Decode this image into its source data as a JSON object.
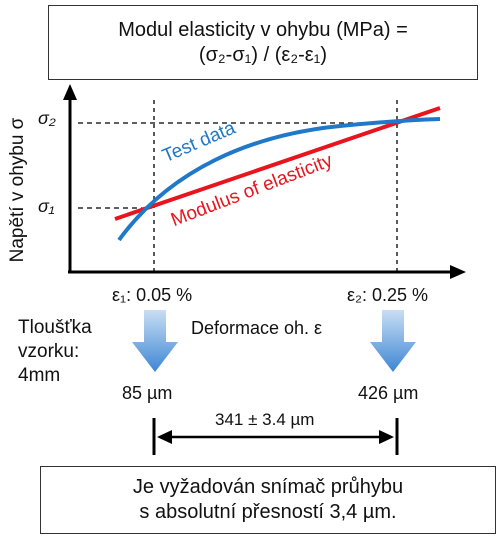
{
  "formula_box": {
    "line1": "Modul elasticity v ohybu (MPa) =",
    "line2": "(σ₂-σ₁) / (ε₂-ε₁)"
  },
  "graph": {
    "ylabel": "Napětí v ohybu σ",
    "sigma2": "σ₂",
    "sigma1": "σ₁",
    "test_data_label": "Test data",
    "modulus_label": "Modulus of elasticity",
    "eps1_label": "ε₁: 0.05 %",
    "eps2_label": "ε₂: 0.25 %",
    "xlabel": "Deformace oh. ε",
    "colors": {
      "test_data": "#1f78c8",
      "modulus": "#e8141e",
      "axis": "#000000",
      "arrow": "#4a8fd6"
    }
  },
  "thickness": {
    "line1": "Tloušťka",
    "line2": "vzorku:",
    "line3": "4mm"
  },
  "measure": {
    "left_value": "85 µm",
    "right_value": "426 µm",
    "difference": "341 ± 3.4 µm"
  },
  "conclusion_box": {
    "line1": "Je vyžadován snímač průhybu",
    "line2": "s absolutní přesností 3,4 µm."
  }
}
